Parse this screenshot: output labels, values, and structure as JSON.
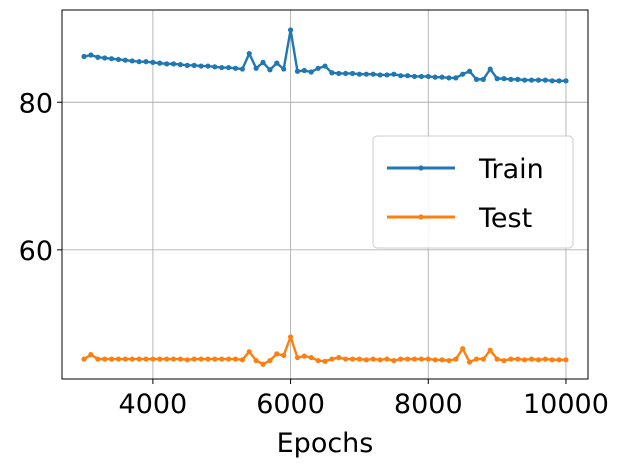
{
  "chart_data": {
    "type": "line",
    "title": "",
    "xlabel": "Epochs",
    "ylabel": "",
    "xlim": [
      2680,
      10320
    ],
    "ylim": [
      42.5,
      92.5
    ],
    "xticks": [
      4000,
      6000,
      8000,
      10000
    ],
    "xtick_labels": [
      "4000",
      "6000",
      "8000",
      "10000"
    ],
    "yticks": [
      60,
      80
    ],
    "ytick_labels": [
      "60",
      "80"
    ],
    "grid": true,
    "legend_position": "center-right",
    "x": [
      3000,
      3100,
      3200,
      3300,
      3400,
      3500,
      3600,
      3700,
      3800,
      3900,
      4000,
      4100,
      4200,
      4300,
      4400,
      4500,
      4600,
      4700,
      4800,
      4900,
      5000,
      5100,
      5200,
      5300,
      5400,
      5500,
      5600,
      5700,
      5800,
      5900,
      6000,
      6100,
      6200,
      6300,
      6400,
      6500,
      6600,
      6700,
      6800,
      6900,
      7000,
      7100,
      7200,
      7300,
      7400,
      7500,
      7600,
      7700,
      7800,
      7900,
      8000,
      8100,
      8200,
      8300,
      8400,
      8500,
      8600,
      8700,
      8800,
      8900,
      9000,
      9100,
      9200,
      9300,
      9400,
      9500,
      9600,
      9700,
      9800,
      9900,
      10000
    ],
    "series": [
      {
        "name": "Train",
        "color": "#1f77b4",
        "values": [
          86.2,
          86.4,
          86.1,
          86.0,
          85.9,
          85.8,
          85.7,
          85.6,
          85.5,
          85.5,
          85.4,
          85.3,
          85.2,
          85.2,
          85.1,
          85.0,
          85.0,
          84.9,
          84.9,
          84.8,
          84.7,
          84.7,
          84.6,
          84.5,
          86.6,
          84.6,
          85.4,
          84.4,
          85.3,
          84.5,
          89.8,
          84.2,
          84.3,
          84.1,
          84.6,
          84.9,
          84.0,
          83.9,
          83.9,
          83.9,
          83.8,
          83.8,
          83.8,
          83.7,
          83.7,
          83.8,
          83.6,
          83.6,
          83.5,
          83.5,
          83.5,
          83.4,
          83.4,
          83.3,
          83.3,
          83.8,
          84.2,
          83.1,
          83.1,
          84.5,
          83.2,
          83.2,
          83.1,
          83.1,
          83.0,
          83.0,
          83.0,
          83.0,
          82.9,
          82.9,
          82.9
        ]
      },
      {
        "name": "Test",
        "color": "#ff7f0e",
        "values": [
          45.2,
          45.8,
          45.2,
          45.2,
          45.2,
          45.2,
          45.2,
          45.2,
          45.2,
          45.2,
          45.2,
          45.2,
          45.2,
          45.2,
          45.2,
          45.1,
          45.2,
          45.2,
          45.2,
          45.2,
          45.2,
          45.2,
          45.2,
          45.1,
          46.2,
          45.0,
          44.5,
          45.0,
          45.9,
          45.7,
          48.2,
          45.4,
          45.6,
          45.4,
          45.0,
          44.9,
          45.2,
          45.4,
          45.2,
          45.2,
          45.2,
          45.1,
          45.2,
          45.1,
          45.2,
          45.0,
          45.2,
          45.2,
          45.2,
          45.2,
          45.2,
          45.1,
          45.1,
          45.0,
          45.2,
          46.6,
          44.8,
          45.2,
          45.2,
          46.4,
          45.2,
          45.0,
          45.2,
          45.2,
          45.1,
          45.2,
          45.1,
          45.2,
          45.1,
          45.1,
          45.1
        ]
      }
    ]
  }
}
